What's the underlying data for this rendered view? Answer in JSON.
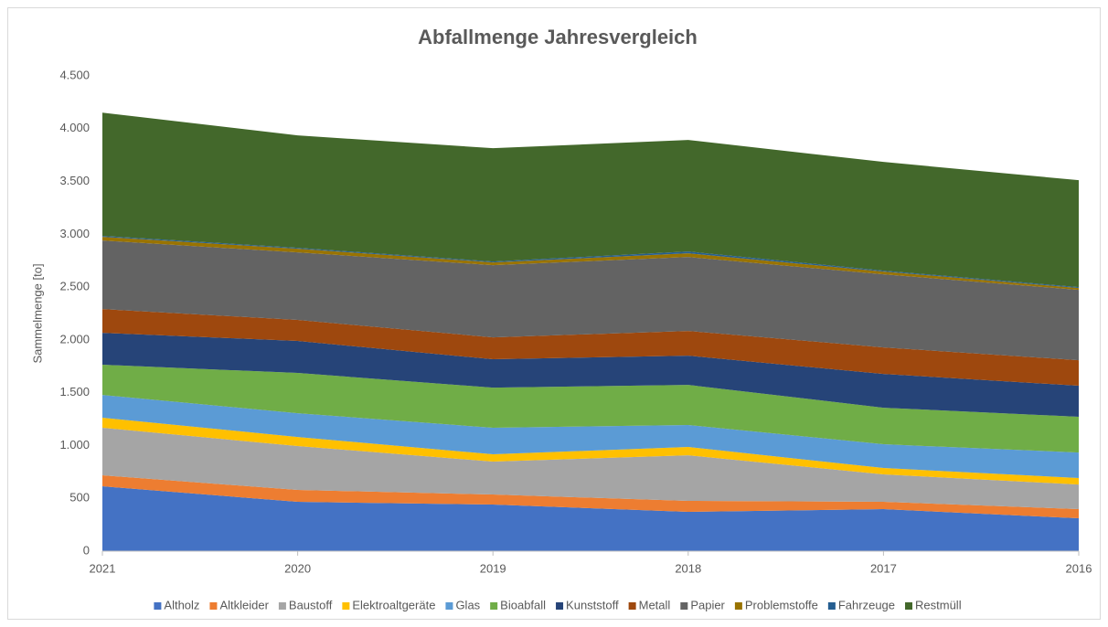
{
  "chart_data": {
    "type": "area",
    "stacked": true,
    "title": "Abfallmenge Jahresvergleich",
    "y_label": "Sammelmenge [to]",
    "categories": [
      "2021",
      "2020",
      "2019",
      "2018",
      "2017",
      "2016"
    ],
    "ylim": [
      0,
      4500
    ],
    "yticks": [
      0,
      500,
      {
        "value": 1000,
        "label": "1.000"
      },
      {
        "value": 1500,
        "label": "1.500"
      },
      {
        "value": 2000,
        "label": "2.000"
      },
      {
        "value": 2500,
        "label": "2.500"
      },
      {
        "value": 3000,
        "label": "3.000"
      },
      {
        "value": 3500,
        "label": "3.500"
      },
      {
        "value": 4000,
        "label": "4.000"
      },
      {
        "value": 4500,
        "label": "4.500"
      }
    ],
    "grid": false,
    "legend": "bottom",
    "series": [
      {
        "name": "Altholz",
        "color": "#4472c4",
        "values": [
          614,
          467,
          441,
          372,
          398,
          311
        ]
      },
      {
        "name": "Altkleider",
        "color": "#ed7d31",
        "values": [
          104,
          113,
          95,
          104,
          69,
          87
        ]
      },
      {
        "name": "Baustoff",
        "color": "#a5a5a5",
        "values": [
          450,
          415,
          312,
          432,
          260,
          233
        ]
      },
      {
        "name": "Elektroaltgeräte",
        "color": "#ffc000",
        "values": [
          95,
          86,
          69,
          78,
          60,
          61
        ]
      },
      {
        "name": "Glas",
        "color": "#5b9bd5",
        "values": [
          216,
          225,
          251,
          208,
          225,
          242
        ]
      },
      {
        "name": "Bioabfall",
        "color": "#70ad47",
        "values": [
          286,
          381,
          380,
          380,
          346,
          338
        ]
      },
      {
        "name": "Kunststoff",
        "color": "#264478",
        "values": [
          302,
          303,
          269,
          277,
          320,
          294
        ]
      },
      {
        "name": "Metall",
        "color": "#9e480e",
        "values": [
          225,
          199,
          207,
          234,
          251,
          242
        ]
      },
      {
        "name": "Papier",
        "color": "#636363",
        "values": [
          649,
          640,
          684,
          700,
          692,
          666
        ]
      },
      {
        "name": "Problemstoffe",
        "color": "#997300",
        "values": [
          35,
          34,
          26,
          35,
          26,
          17
        ]
      },
      {
        "name": "Fahrzeuge",
        "color": "#255e91",
        "values": [
          9,
          9,
          8,
          17,
          9,
          9
        ]
      },
      {
        "name": "Restmüll",
        "color": "#43682b",
        "values": [
          1167,
          1064,
          1073,
          1056,
          1029,
          1012
        ]
      }
    ]
  }
}
